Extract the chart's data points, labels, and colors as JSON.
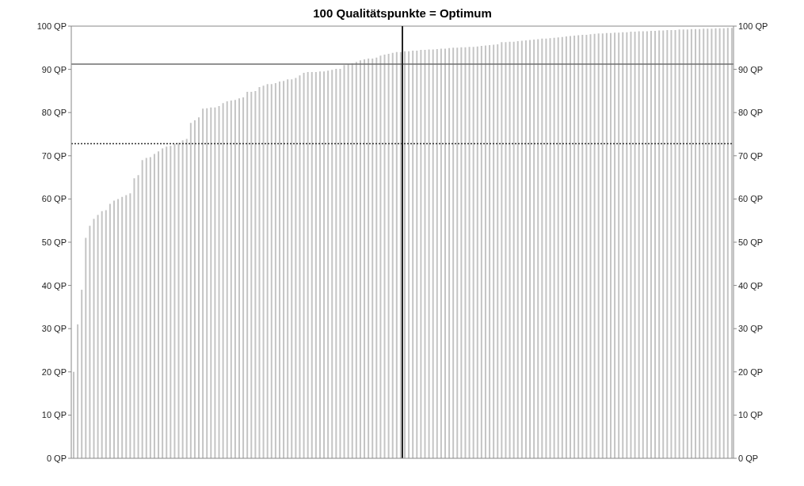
{
  "chart_data": {
    "type": "bar",
    "title": "100 Qualitätspunkte = Optimum",
    "color": "#c4c4c4",
    "tick_labels": "y",
    "categories": [
      null,
      null,
      null,
      null,
      null,
      null,
      null,
      null,
      null,
      null,
      null,
      null,
      null,
      null,
      null,
      null,
      null,
      null,
      null,
      null,
      null,
      null,
      null,
      null,
      null,
      null,
      null,
      null,
      null,
      null,
      null,
      null,
      null,
      null,
      null,
      null,
      null,
      null,
      null,
      null,
      null,
      null,
      null,
      null,
      null,
      null,
      null,
      null,
      null,
      null,
      null,
      null,
      null,
      null,
      null,
      null,
      null,
      null,
      null,
      null,
      null,
      null,
      null,
      null,
      null,
      null,
      null,
      null,
      null,
      null,
      null,
      null,
      null,
      null,
      null,
      null,
      null,
      null,
      null,
      null,
      null,
      null,
      null,
      null,
      null,
      null,
      null,
      null,
      null,
      null,
      null,
      null,
      null,
      null,
      null,
      null,
      null,
      null,
      null,
      null,
      null,
      null,
      null,
      null,
      null,
      null,
      null,
      null,
      null,
      null,
      null,
      null,
      null,
      null,
      null,
      null,
      null,
      null,
      null,
      null,
      null,
      null,
      null,
      null,
      null,
      null,
      null,
      null,
      null,
      null,
      null,
      null,
      null,
      null,
      null,
      null,
      null,
      null,
      null,
      null,
      null,
      null,
      null,
      null,
      null,
      null,
      null,
      null,
      null,
      null,
      null,
      null,
      null,
      null,
      null,
      null,
      null,
      null,
      null,
      null,
      null,
      null,
      null,
      null
    ],
    "values": [
      20,
      31,
      39,
      51,
      53.8,
      55.4,
      56.3,
      57.2,
      57.4,
      58.9,
      59.6,
      60,
      60.5,
      60.9,
      61.3,
      64.8,
      65.5,
      69,
      69.5,
      69.7,
      70.4,
      71,
      71.7,
      72.1,
      72.3,
      72.7,
      73,
      73.6,
      73.9,
      77.6,
      78.2,
      78.9,
      80.9,
      81,
      81.2,
      81.2,
      81.5,
      82.2,
      82.6,
      82.8,
      82.9,
      83.3,
      83.5,
      84.8,
      84.8,
      85,
      85.9,
      86.2,
      86.6,
      86.6,
      86.8,
      87.2,
      87.3,
      87.7,
      87.7,
      88,
      88.6,
      89.2,
      89.4,
      89.4,
      89.4,
      89.5,
      89.5,
      89.7,
      89.9,
      90.1,
      90.1,
      91,
      91.2,
      91.4,
      91.7,
      92.1,
      92.3,
      92.5,
      92.5,
      92.7,
      93.2,
      93.4,
      93.6,
      93.8,
      94,
      94,
      94.2,
      94.2,
      94.3,
      94.3,
      94.5,
      94.5,
      94.6,
      94.6,
      94.7,
      94.8,
      94.8,
      94.9,
      95,
      95,
      95.1,
      95.1,
      95.2,
      95.2,
      95.3,
      95.4,
      95.5,
      95.6,
      95.7,
      95.8,
      96.3,
      96.3,
      96.4,
      96.4,
      96.5,
      96.6,
      96.7,
      96.8,
      96.9,
      97,
      97.1,
      97.1,
      97.2,
      97.3,
      97.4,
      97.5,
      97.6,
      97.7,
      97.8,
      97.9,
      98,
      98,
      98.1,
      98.2,
      98.3,
      98.3,
      98.4,
      98.4,
      98.5,
      98.5,
      98.6,
      98.6,
      98.7,
      98.7,
      98.8,
      98.8,
      98.8,
      98.9,
      98.9,
      99,
      99,
      99.1,
      99.1,
      99.1,
      99.2,
      99.2,
      99.2,
      99.3,
      99.3,
      99.3,
      99.4,
      99.4,
      99.4,
      99.5,
      99.5,
      99.5,
      99.6,
      99.6
    ],
    "ylim": [
      0,
      100
    ],
    "yticks": [
      {
        "value": 0,
        "label": "0 QP"
      },
      {
        "value": 10,
        "label": "10 QP"
      },
      {
        "value": 20,
        "label": "20 QP"
      },
      {
        "value": 30,
        "label": "30 QP"
      },
      {
        "value": 40,
        "label": "40 QP"
      },
      {
        "value": 50,
        "label": "50 QP"
      },
      {
        "value": 60,
        "label": "60 QP"
      },
      {
        "value": 70,
        "label": "70 QP"
      },
      {
        "value": 80,
        "label": "80 QP"
      },
      {
        "value": 90,
        "label": "90 QP"
      },
      {
        "value": 100,
        "label": "100 QP"
      }
    ],
    "y2lim": [
      0,
      100
    ],
    "y2ticks": [
      {
        "value": 0,
        "label": "0 QP"
      },
      {
        "value": 10,
        "label": "10 QP"
      },
      {
        "value": 20,
        "label": "20 QP"
      },
      {
        "value": 30,
        "label": "30 QP"
      },
      {
        "value": 40,
        "label": "40 QP"
      },
      {
        "value": 50,
        "label": "50 QP"
      },
      {
        "value": 60,
        "label": "60 QP"
      },
      {
        "value": 70,
        "label": "70 QP"
      },
      {
        "value": 80,
        "label": "80 QP"
      },
      {
        "value": 90,
        "label": "90 QP"
      },
      {
        "value": 100,
        "label": "100 QP"
      }
    ],
    "ref_lines": [
      {
        "axis": "y",
        "value": 91.2,
        "color": "#6e6e6e",
        "line_style": "solid"
      },
      {
        "axis": "y",
        "value": 72.8,
        "color": "#333333",
        "line_style": "dotted"
      }
    ],
    "grid": false,
    "legend": false
  }
}
